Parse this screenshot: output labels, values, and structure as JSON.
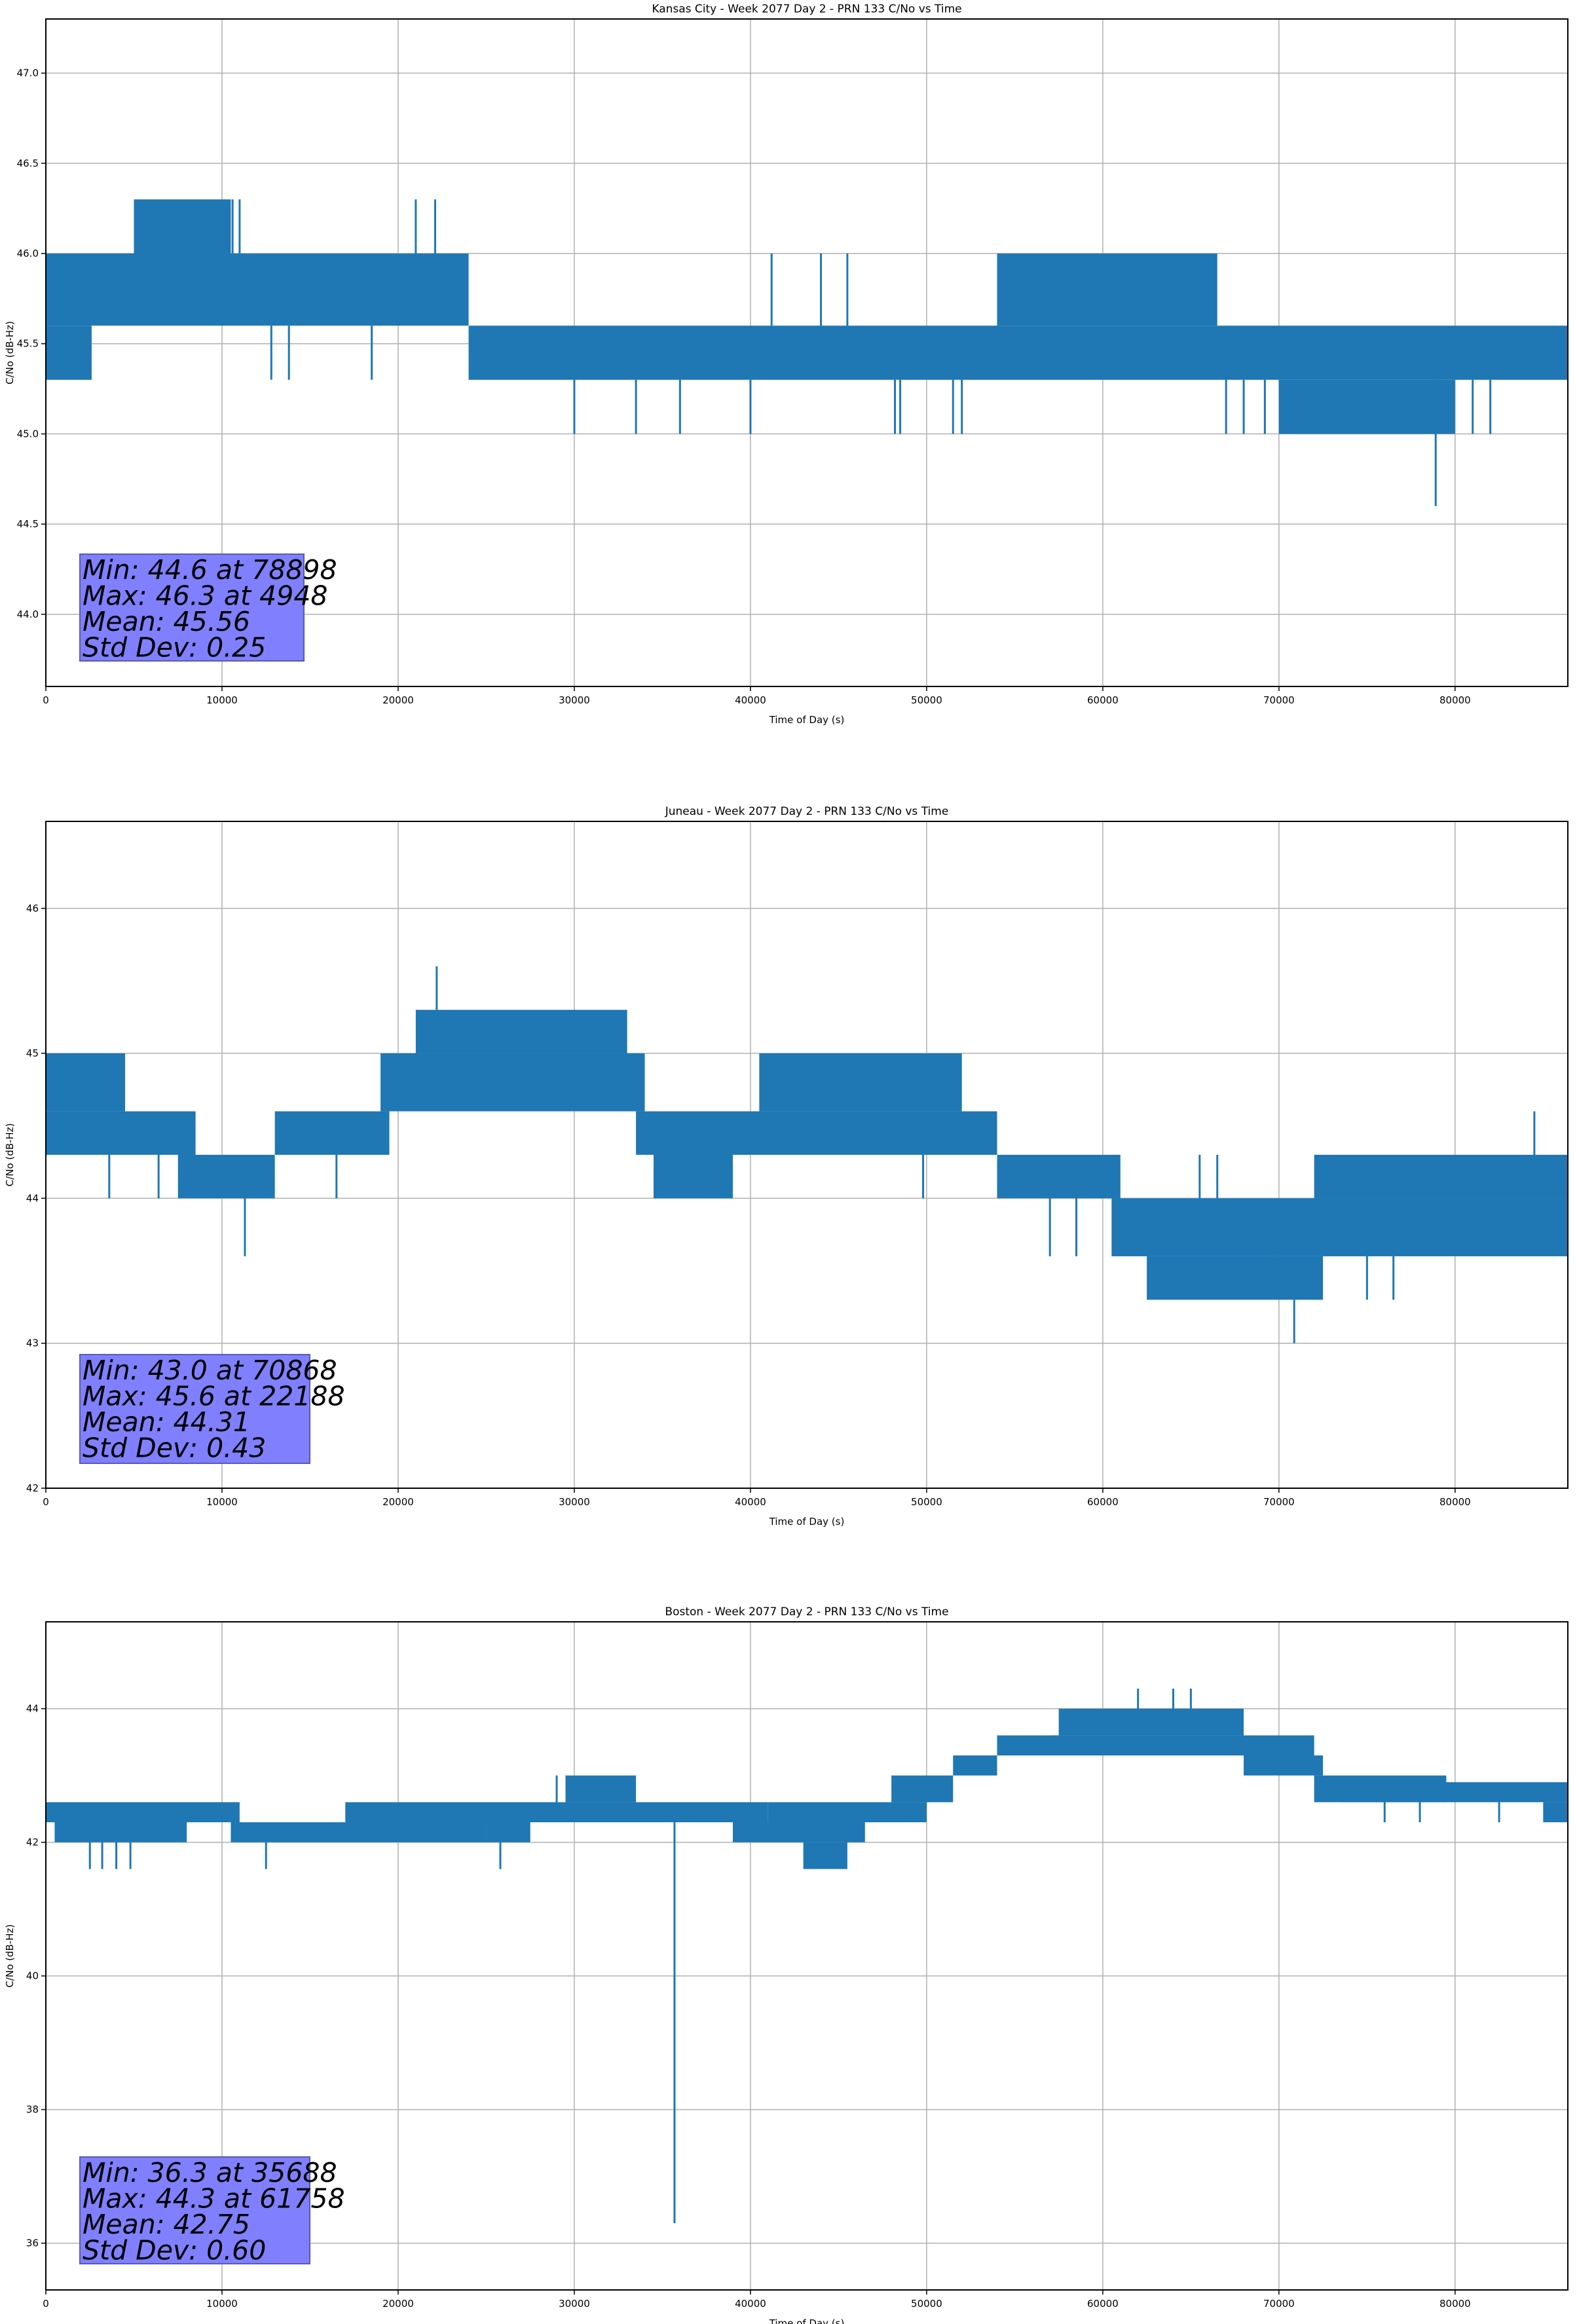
{
  "colors": {
    "line": "#1f77b4",
    "stats_box": "#8080ff",
    "grid": "#b0b0b0"
  },
  "chart_data": [
    {
      "type": "line",
      "title": "Kansas City - Week 2077 Day 2 - PRN 133 C/No vs Time",
      "xlabel": "Time of Day (s)",
      "ylabel": "C/No (dB-Hz)",
      "xlim": [
        0,
        86400
      ],
      "ylim": [
        43.6,
        47.3
      ],
      "grid": true,
      "x_ticks": [
        0,
        10000,
        20000,
        30000,
        40000,
        50000,
        60000,
        70000,
        80000
      ],
      "x_tick_labels": [
        "0",
        "10000",
        "20000",
        "30000",
        "40000",
        "50000",
        "60000",
        "70000",
        "80000"
      ],
      "y_ticks": [
        44.0,
        44.5,
        45.0,
        45.5,
        46.0,
        46.5,
        47.0
      ],
      "y_tick_labels": [
        "44.0",
        "44.5",
        "45.0",
        "45.5",
        "46.0",
        "46.5",
        "47.0"
      ],
      "bands": [
        [
          0,
          2600,
          45.3,
          45.6
        ],
        [
          0,
          24000,
          45.6,
          46.0
        ],
        [
          5000,
          10500,
          46.0,
          46.3
        ],
        [
          24000,
          86400,
          45.3,
          45.6
        ],
        [
          54000,
          66500,
          45.6,
          46.0
        ],
        [
          70000,
          80000,
          45.0,
          45.3
        ]
      ],
      "spikes": [
        [
          10600,
          46.0,
          46.3
        ],
        [
          11000,
          46.0,
          46.3
        ],
        [
          21000,
          46.0,
          46.3
        ],
        [
          22100,
          46.0,
          46.3
        ],
        [
          12800,
          45.3,
          45.6
        ],
        [
          13800,
          45.3,
          45.6
        ],
        [
          18500,
          45.3,
          45.6
        ],
        [
          30000,
          45.0,
          45.3
        ],
        [
          33500,
          45.0,
          45.3
        ],
        [
          36000,
          45.0,
          45.3
        ],
        [
          40000,
          45.0,
          45.3
        ],
        [
          41200,
          45.6,
          46.0
        ],
        [
          44000,
          45.6,
          46.0
        ],
        [
          45500,
          45.6,
          46.0
        ],
        [
          48200,
          45.0,
          45.3
        ],
        [
          48500,
          45.0,
          45.3
        ],
        [
          51500,
          45.0,
          45.3
        ],
        [
          52000,
          45.0,
          45.3
        ],
        [
          67000,
          45.0,
          45.3
        ],
        [
          68000,
          45.0,
          45.3
        ],
        [
          69200,
          45.0,
          45.3
        ],
        [
          81000,
          45.0,
          45.3
        ],
        [
          82000,
          45.0,
          45.3
        ],
        [
          78898,
          44.6,
          45.3
        ]
      ],
      "stats": [
        "Min: 44.6 at 78898",
        "Max: 46.3 at 4948",
        "Mean: 45.56",
        "Std Dev: 0.25"
      ]
    },
    {
      "type": "line",
      "title": "Juneau - Week 2077 Day 2 - PRN 133 C/No vs Time",
      "xlabel": "Time of Day (s)",
      "ylabel": "C/No (dB-Hz)",
      "xlim": [
        0,
        86400
      ],
      "ylim": [
        42.0,
        46.6
      ],
      "grid": true,
      "x_ticks": [
        0,
        10000,
        20000,
        30000,
        40000,
        50000,
        60000,
        70000,
        80000
      ],
      "x_tick_labels": [
        "0",
        "10000",
        "20000",
        "30000",
        "40000",
        "50000",
        "60000",
        "70000",
        "80000"
      ],
      "y_ticks": [
        42,
        43,
        44,
        45,
        46
      ],
      "y_tick_labels": [
        "42",
        "43",
        "44",
        "45",
        "46"
      ],
      "bands": [
        [
          0,
          8500,
          44.3,
          44.6
        ],
        [
          0,
          4500,
          44.6,
          45.0
        ],
        [
          7500,
          13000,
          44.0,
          44.3
        ],
        [
          13000,
          19500,
          44.3,
          44.6
        ],
        [
          19000,
          34000,
          44.6,
          45.0
        ],
        [
          21000,
          33000,
          45.0,
          45.3
        ],
        [
          33500,
          54000,
          44.3,
          44.6
        ],
        [
          40500,
          52000,
          44.6,
          45.0
        ],
        [
          34500,
          39000,
          44.0,
          44.3
        ],
        [
          54000,
          61000,
          44.0,
          44.3
        ],
        [
          60500,
          86400,
          43.6,
          44.0
        ],
        [
          62500,
          72500,
          43.3,
          43.6
        ],
        [
          72000,
          86400,
          44.0,
          44.3
        ]
      ],
      "spikes": [
        [
          22188,
          45.3,
          45.6
        ],
        [
          11300,
          43.6,
          44.0
        ],
        [
          3600,
          44.0,
          44.3
        ],
        [
          6400,
          44.0,
          44.3
        ],
        [
          16500,
          44.0,
          44.3
        ],
        [
          49800,
          44.0,
          44.3
        ],
        [
          57000,
          43.6,
          44.0
        ],
        [
          58500,
          43.6,
          44.0
        ],
        [
          65500,
          44.0,
          44.3
        ],
        [
          66500,
          44.0,
          44.3
        ],
        [
          70868,
          43.0,
          43.3
        ],
        [
          75000,
          43.3,
          43.6
        ],
        [
          76500,
          43.3,
          43.6
        ],
        [
          84500,
          44.3,
          44.6
        ]
      ],
      "stats": [
        "Min: 43.0 at 70868",
        "Max: 45.6 at 22188",
        "Mean: 44.31",
        "Std Dev: 0.43"
      ]
    },
    {
      "type": "line",
      "title": "Boston - Week 2077 Day 2 - PRN 133 C/No vs Time",
      "xlabel": "Time of Day (s)",
      "ylabel": "C/No (dB-Hz)",
      "xlim": [
        0,
        86400
      ],
      "ylim": [
        35.3,
        45.3
      ],
      "grid": true,
      "x_ticks": [
        0,
        10000,
        20000,
        30000,
        40000,
        50000,
        60000,
        70000,
        80000
      ],
      "x_tick_labels": [
        "0",
        "10000",
        "20000",
        "30000",
        "40000",
        "50000",
        "60000",
        "70000",
        "80000"
      ],
      "y_ticks": [
        36,
        38,
        40,
        42,
        44
      ],
      "y_tick_labels": [
        "36",
        "38",
        "40",
        "42",
        "44"
      ],
      "bands": [
        [
          0,
          11000,
          42.3,
          42.6
        ],
        [
          500,
          8000,
          42.0,
          42.3
        ],
        [
          10500,
          25000,
          42.0,
          42.3
        ],
        [
          17000,
          41000,
          42.3,
          42.6
        ],
        [
          25000,
          27500,
          42.0,
          42.3
        ],
        [
          29500,
          33500,
          42.6,
          43.0
        ],
        [
          39000,
          46500,
          42.0,
          42.3
        ],
        [
          41000,
          50000,
          42.3,
          42.6
        ],
        [
          43000,
          45500,
          41.6,
          42.0
        ],
        [
          48000,
          51500,
          42.6,
          43.0
        ],
        [
          51500,
          54000,
          43.0,
          43.3
        ],
        [
          54000,
          57500,
          43.3,
          43.6
        ],
        [
          57500,
          68000,
          43.6,
          44.0
        ],
        [
          57000,
          72000,
          43.3,
          43.6
        ],
        [
          68000,
          72500,
          43.0,
          43.3
        ],
        [
          72000,
          79500,
          42.6,
          43.0
        ],
        [
          73500,
          86400,
          42.6,
          42.9
        ],
        [
          85000,
          86400,
          42.3,
          42.6
        ]
      ],
      "spikes": [
        [
          2500,
          41.6,
          42.0
        ],
        [
          3200,
          41.6,
          42.0
        ],
        [
          4000,
          41.6,
          42.0
        ],
        [
          4800,
          41.6,
          42.0
        ],
        [
          12500,
          41.6,
          42.0
        ],
        [
          25800,
          41.6,
          42.0
        ],
        [
          29000,
          42.6,
          43.0
        ],
        [
          35688,
          36.3,
          42.3
        ],
        [
          62000,
          44.0,
          44.3
        ],
        [
          64000,
          44.0,
          44.3
        ],
        [
          65000,
          44.0,
          44.3
        ],
        [
          76000,
          42.3,
          42.6
        ],
        [
          78000,
          42.3,
          42.6
        ],
        [
          82500,
          42.3,
          42.6
        ]
      ],
      "stats": [
        "Min: 36.3 at 35688",
        "Max: 44.3 at 61758",
        "Mean: 42.75",
        "Std Dev: 0.60"
      ]
    }
  ]
}
